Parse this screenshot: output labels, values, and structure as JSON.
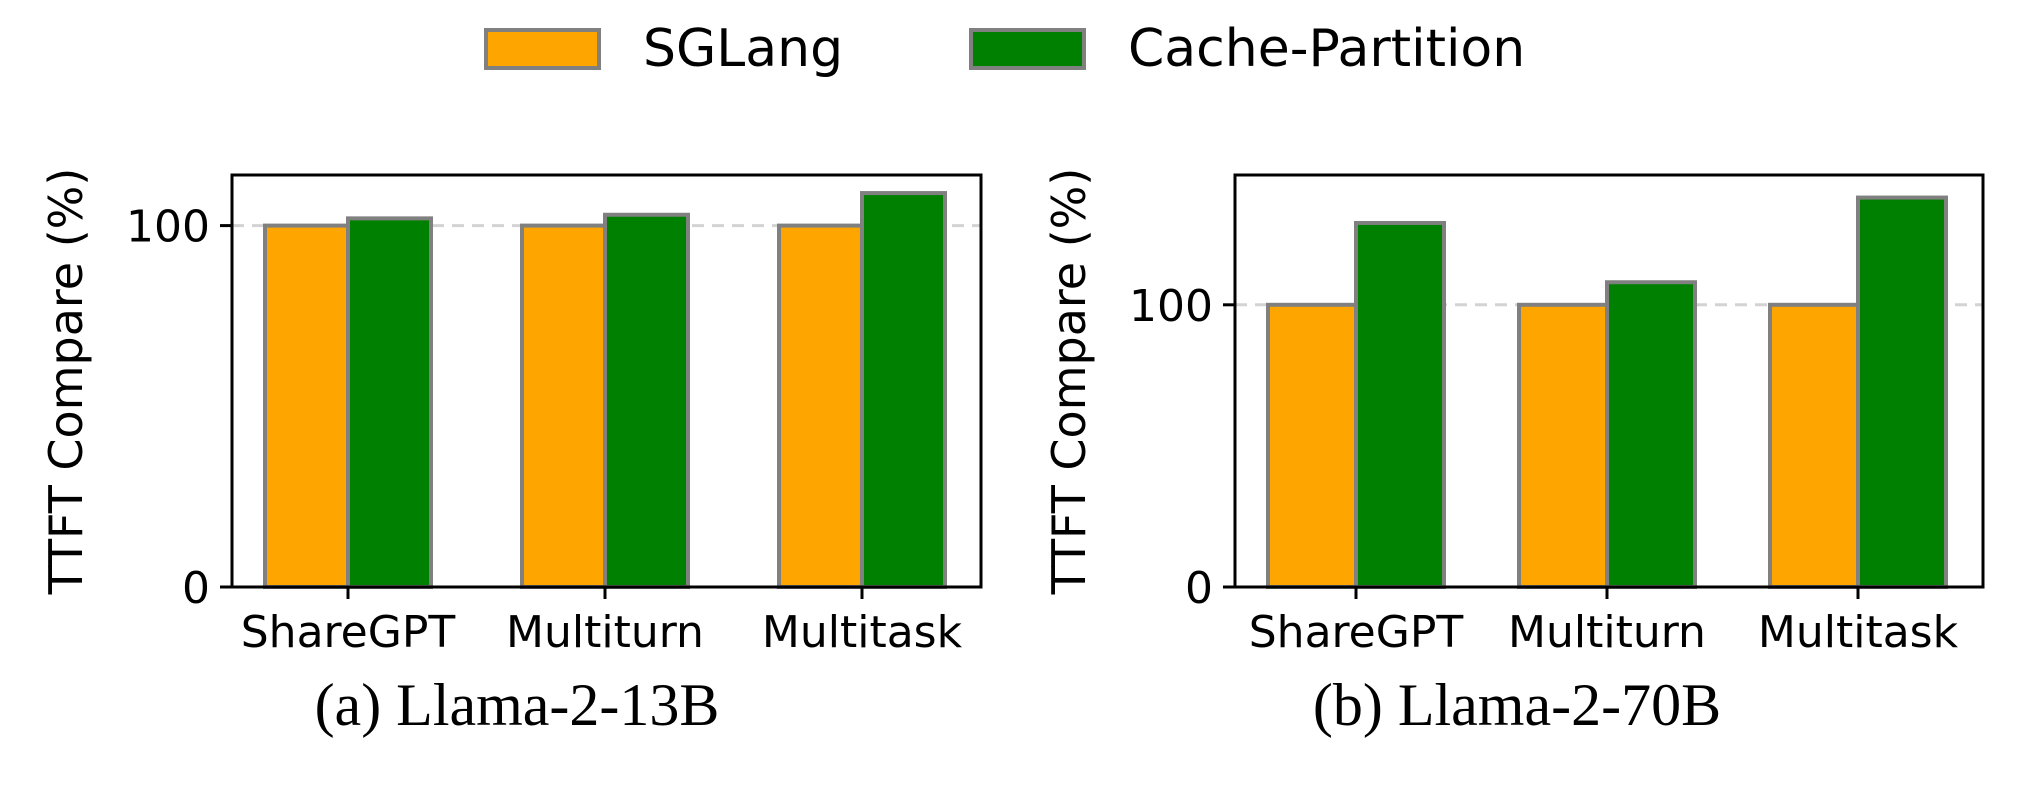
{
  "legend": {
    "items": [
      {
        "label": "SGLang",
        "color": "#FFA500"
      },
      {
        "label": "Cache-Partition",
        "color": "#008000"
      }
    ]
  },
  "colors": {
    "edge": "#808080",
    "axis": "#000000",
    "refline": "#d3d3d3"
  },
  "chart_data": [
    {
      "type": "bar",
      "caption": "(a) Llama-2-13B",
      "ylabel": "TTFT Compare (%)",
      "categories": [
        "ShareGPT",
        "Multiturn",
        "Multitask"
      ],
      "series": [
        {
          "name": "SGLang",
          "values": [
            100,
            100,
            100
          ]
        },
        {
          "name": "Cache-Partition",
          "values": [
            102,
            103,
            109
          ]
        }
      ],
      "yticks": [
        0,
        100
      ],
      "ylim": [
        0,
        114
      ],
      "reference_line": 100,
      "grid": false
    },
    {
      "type": "bar",
      "caption": "(b) Llama-2-70B",
      "ylabel": "TTFT Compare (%)",
      "categories": [
        "ShareGPT",
        "Multiturn",
        "Multitask"
      ],
      "series": [
        {
          "name": "SGLang",
          "values": [
            100,
            100,
            100
          ]
        },
        {
          "name": "Cache-Partition",
          "values": [
            129,
            108,
            138
          ]
        }
      ],
      "yticks": [
        0,
        100
      ],
      "ylim": [
        0,
        146
      ],
      "reference_line": 100,
      "grid": false
    }
  ]
}
